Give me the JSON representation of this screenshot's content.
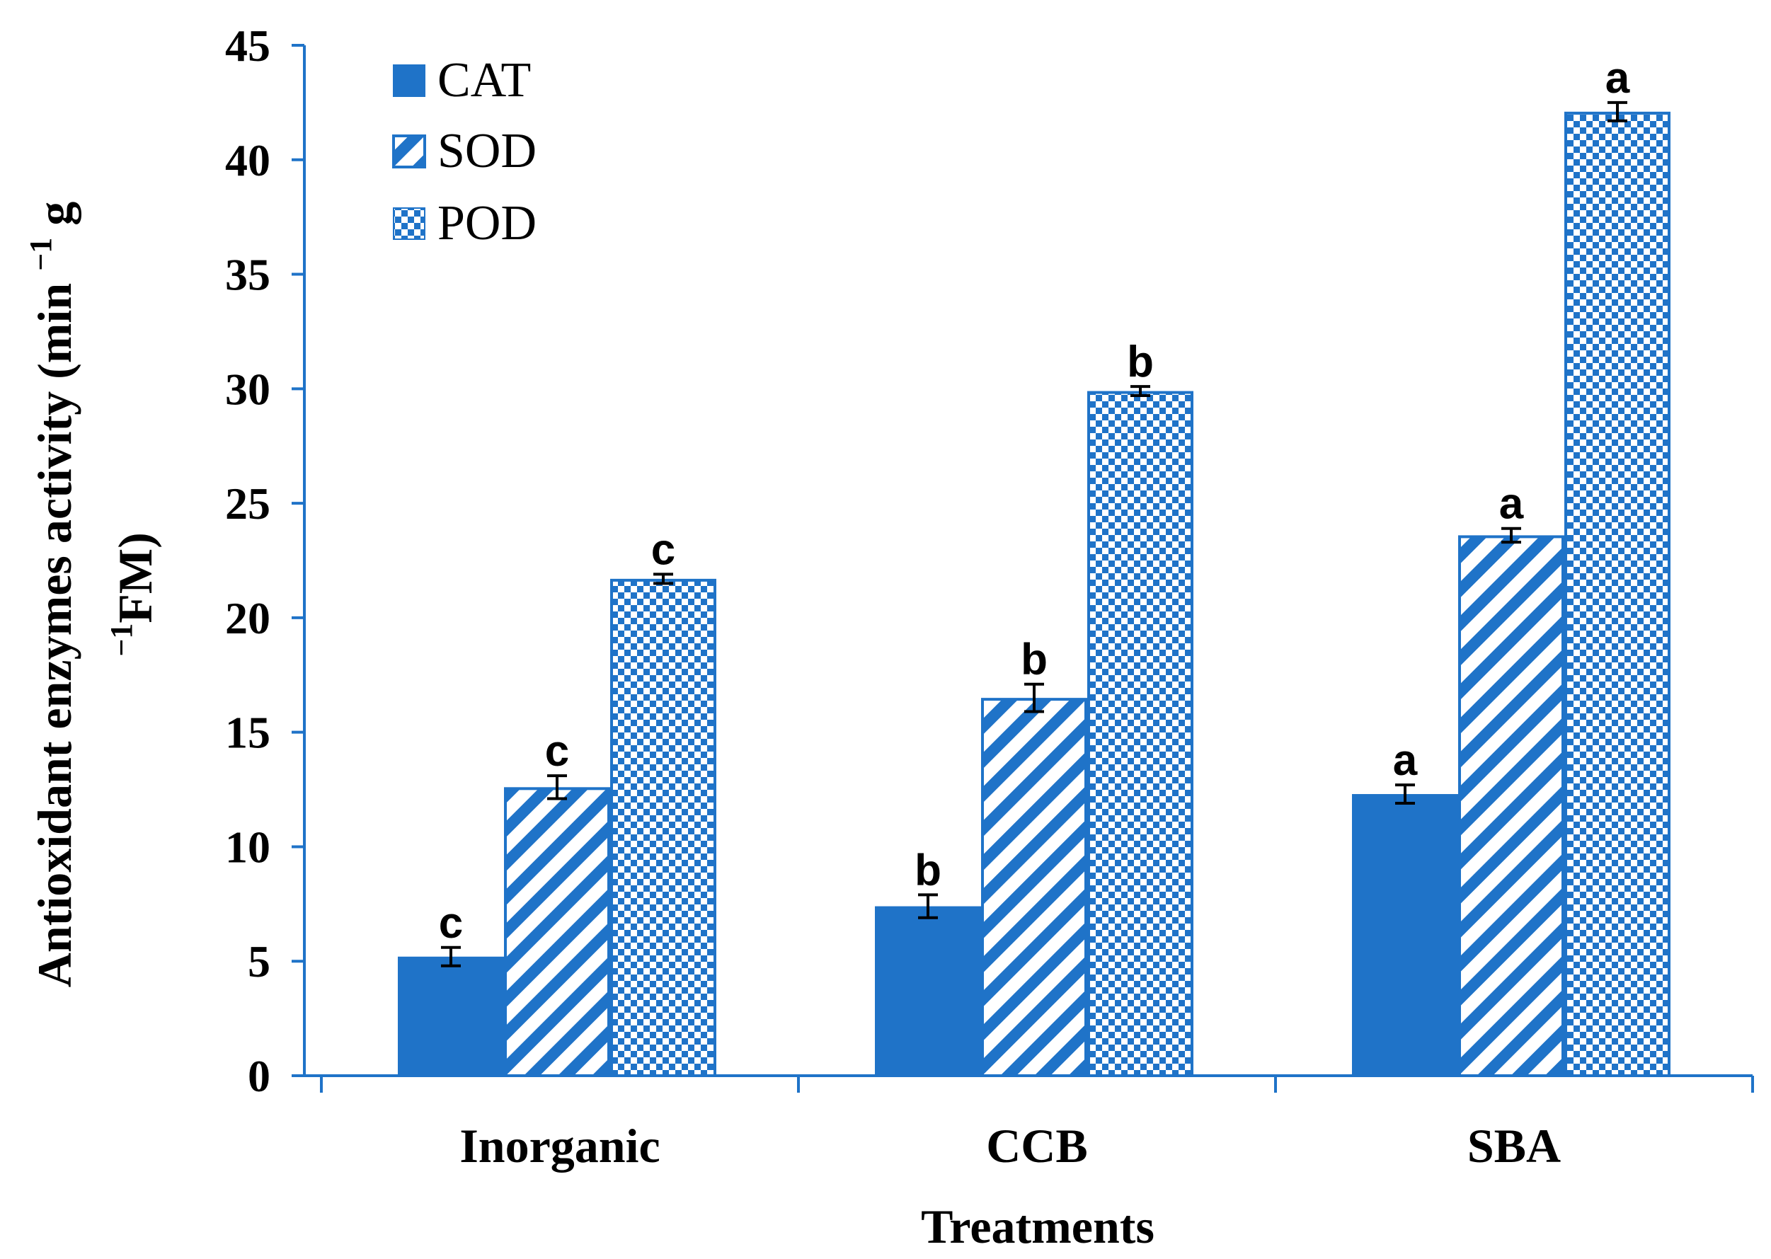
{
  "chart_data": {
    "type": "bar",
    "title": "",
    "xlabel": "Treatments",
    "ylabel_line1": "Antioxidant enzymes activity (min ",
    "ylabel_sup1": "−1",
    "ylabel_g": " g",
    "ylabel_line2_sup": "−1",
    "ylabel_line2": "FM)",
    "categories": [
      "Inorganic",
      "CCB",
      "SBA"
    ],
    "ylim": [
      0,
      45
    ],
    "yticks": [
      0,
      5,
      10,
      15,
      20,
      25,
      30,
      35,
      40,
      45
    ],
    "legend_position": "top-left",
    "colors": {
      "bar": "#1f73c8",
      "axis": "#1f73c8",
      "pattern_bg": "#ffffff"
    },
    "series": [
      {
        "name": "CAT",
        "pattern": "solid",
        "values": [
          5.2,
          7.4,
          12.3
        ],
        "errors": [
          0.4,
          0.5,
          0.4
        ],
        "letters": [
          "c",
          "b",
          "a"
        ]
      },
      {
        "name": "SOD",
        "pattern": "diagonal",
        "values": [
          12.6,
          16.5,
          23.6
        ],
        "errors": [
          0.5,
          0.6,
          0.3
        ],
        "letters": [
          "c",
          "b",
          "a"
        ]
      },
      {
        "name": "POD",
        "pattern": "checker",
        "values": [
          21.7,
          29.9,
          42.1
        ],
        "errors": [
          0.2,
          0.2,
          0.4
        ],
        "letters": [
          "c",
          "b",
          "a"
        ]
      }
    ]
  }
}
